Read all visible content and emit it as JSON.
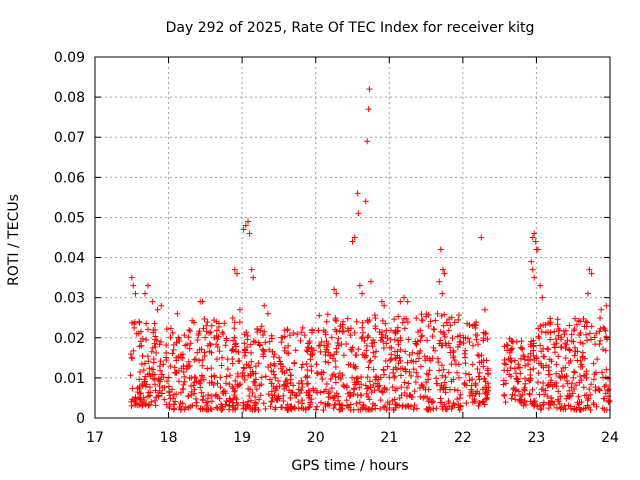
{
  "chart_data": {
    "type": "scatter",
    "title": "Day 292 of 2025, Rate Of TEC Index for receiver kitg",
    "xlabel": "GPS time / hours",
    "ylabel": "ROTI / TECUs",
    "xlim": [
      17,
      24
    ],
    "ylim": [
      0,
      0.09
    ],
    "xticks": [
      17,
      18,
      19,
      20,
      21,
      22,
      23,
      24
    ],
    "xtick_labels": [
      "17",
      "18",
      "19",
      "20",
      "21",
      "22",
      "23",
      "24"
    ],
    "yticks": [
      0,
      0.01,
      0.02,
      0.03,
      0.04,
      0.05,
      0.06,
      0.07,
      0.08,
      0.09
    ],
    "ytick_labels": [
      "0",
      "0.01",
      "0.02",
      "0.03",
      "0.04",
      "0.05",
      "0.06",
      "0.07",
      "0.08",
      "0.09"
    ],
    "grid": true,
    "marker": "+",
    "color": "#ff0000",
    "series": [
      {
        "name": "ROTI",
        "points": [
          [
            17.5,
            0.035
          ],
          [
            17.52,
            0.033
          ],
          [
            17.55,
            0.031
          ],
          [
            17.6,
            0.024
          ],
          [
            17.63,
            0.018
          ],
          [
            17.68,
            0.031
          ],
          [
            17.72,
            0.033
          ],
          [
            17.78,
            0.029
          ],
          [
            17.85,
            0.027
          ],
          [
            17.9,
            0.028
          ],
          [
            18.12,
            0.026
          ],
          [
            18.43,
            0.029
          ],
          [
            18.46,
            0.029
          ],
          [
            18.65,
            0.024
          ],
          [
            18.9,
            0.037
          ],
          [
            18.93,
            0.036
          ],
          [
            18.97,
            0.027
          ],
          [
            19.02,
            0.047
          ],
          [
            19.05,
            0.048
          ],
          [
            19.08,
            0.049
          ],
          [
            19.1,
            0.046
          ],
          [
            19.13,
            0.037
          ],
          [
            19.15,
            0.035
          ],
          [
            19.3,
            0.028
          ],
          [
            19.35,
            0.026
          ],
          [
            19.95,
            0.022
          ],
          [
            20.15,
            0.024
          ],
          [
            20.25,
            0.032
          ],
          [
            20.28,
            0.031
          ],
          [
            20.5,
            0.044
          ],
          [
            20.53,
            0.045
          ],
          [
            20.57,
            0.056
          ],
          [
            20.58,
            0.051
          ],
          [
            20.6,
            0.033
          ],
          [
            20.63,
            0.031
          ],
          [
            20.68,
            0.054
          ],
          [
            20.7,
            0.069
          ],
          [
            20.72,
            0.077
          ],
          [
            20.73,
            0.082
          ],
          [
            20.75,
            0.034
          ],
          [
            20.9,
            0.029
          ],
          [
            20.93,
            0.028
          ],
          [
            21.15,
            0.029
          ],
          [
            21.2,
            0.03
          ],
          [
            21.25,
            0.029
          ],
          [
            21.7,
            0.042
          ],
          [
            21.73,
            0.037
          ],
          [
            21.75,
            0.036
          ],
          [
            21.68,
            0.034
          ],
          [
            21.72,
            0.031
          ],
          [
            22.25,
            0.045
          ],
          [
            22.3,
            0.027
          ],
          [
            22.95,
            0.045
          ],
          [
            22.97,
            0.046
          ],
          [
            22.99,
            0.044
          ],
          [
            23.0,
            0.042
          ],
          [
            23.02,
            0.042
          ],
          [
            22.93,
            0.039
          ],
          [
            22.95,
            0.037
          ],
          [
            22.97,
            0.035
          ],
          [
            23.05,
            0.033
          ],
          [
            23.08,
            0.03
          ],
          [
            23.72,
            0.037
          ],
          [
            23.75,
            0.036
          ],
          [
            23.7,
            0.031
          ],
          [
            23.88,
            0.027
          ],
          [
            23.95,
            0.028
          ]
        ],
        "bands": [
          {
            "x": [
              17.48,
              17.98
            ],
            "y": [
              0.003,
              0.024
            ]
          },
          {
            "x": [
              18.0,
              18.98
            ],
            "y": [
              0.002,
              0.025
            ]
          },
          {
            "x": [
              19.0,
              19.98
            ],
            "y": [
              0.002,
              0.023
            ]
          },
          {
            "x": [
              20.0,
              20.98
            ],
            "y": [
              0.002,
              0.026
            ]
          },
          {
            "x": [
              21.0,
              21.98
            ],
            "y": [
              0.002,
              0.026
            ]
          },
          {
            "x": [
              22.0,
              22.35
            ],
            "y": [
              0.003,
              0.024
            ]
          },
          {
            "x": [
              22.55,
              22.98
            ],
            "y": [
              0.003,
              0.02
            ]
          },
          {
            "x": [
              23.0,
              24.0
            ],
            "y": [
              0.002,
              0.025
            ]
          }
        ]
      }
    ]
  }
}
